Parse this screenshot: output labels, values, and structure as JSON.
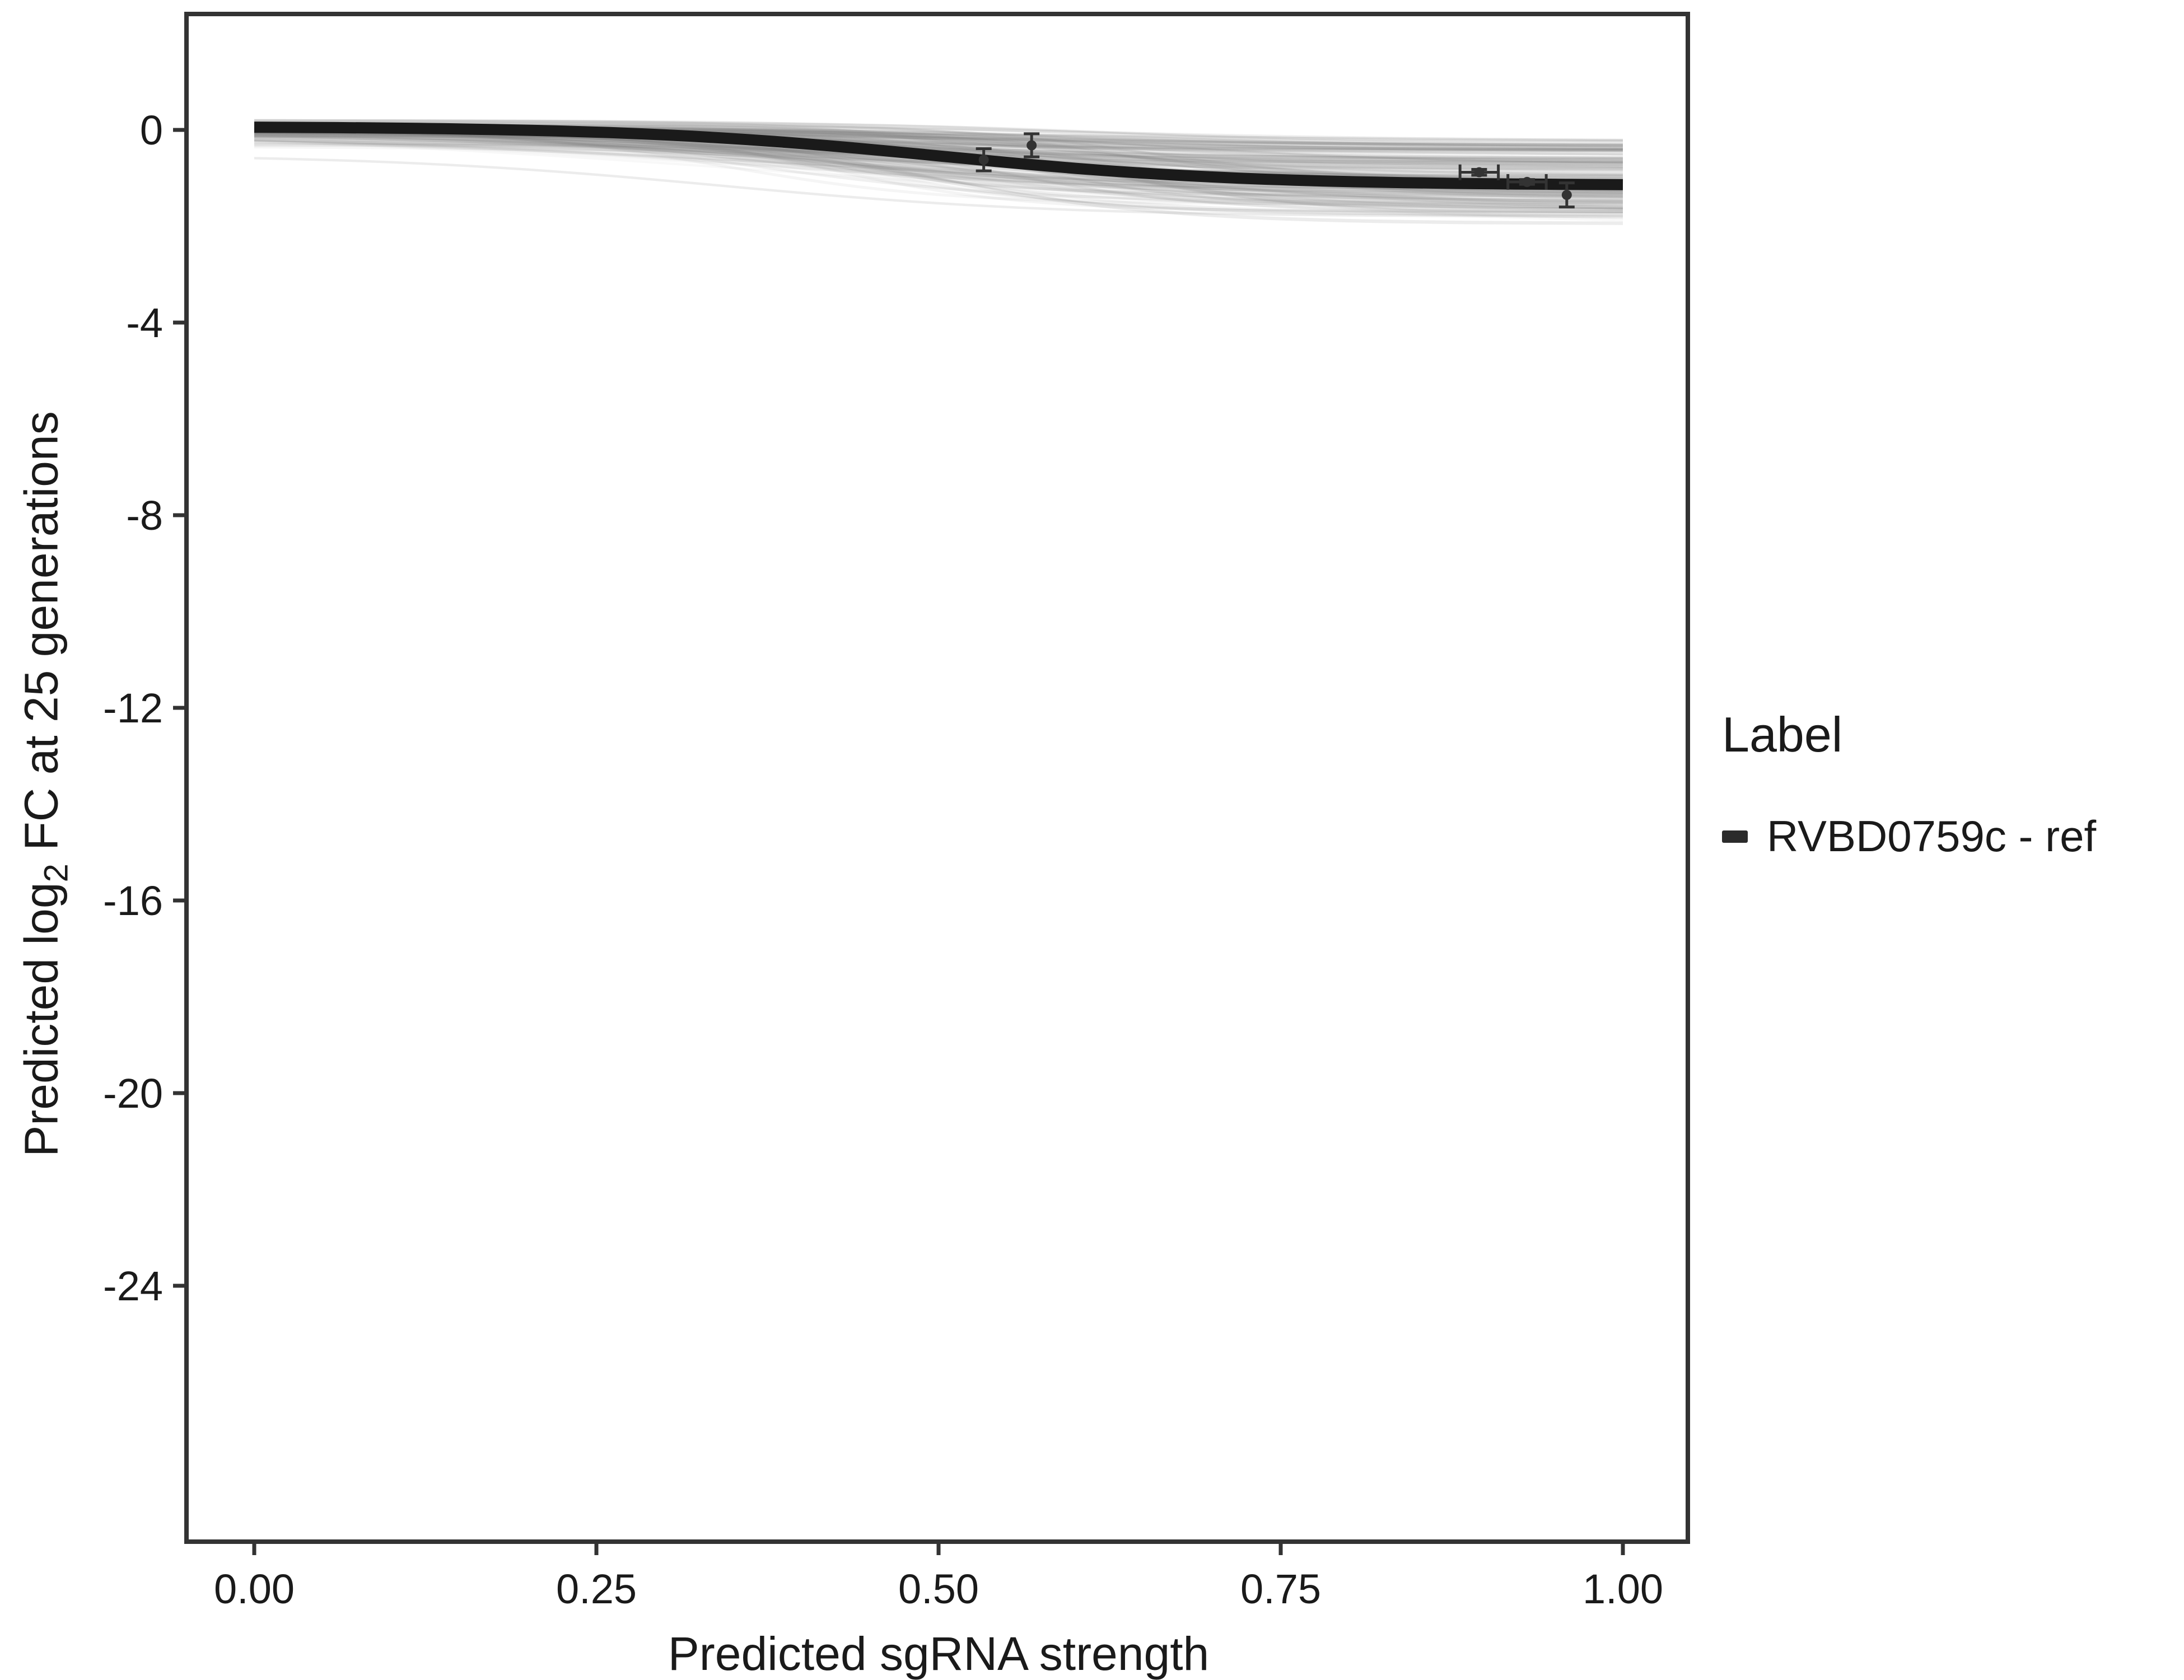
{
  "chart_data": {
    "type": "line",
    "title": "",
    "xlabel": "Predicted sgRNA strength",
    "ylabel": "Predicted log2 FC at 25 generations",
    "ylabel_parts": {
      "pre": "Predicted log",
      "sub": "2",
      "post": " FC at 25 generations"
    },
    "x_domain": [
      0,
      1
    ],
    "y_domain_top": 0,
    "y_domain_bottom": -24,
    "x_ticks": {
      "values": [
        0,
        0.25,
        0.5,
        0.75,
        1
      ],
      "labels": [
        "0.00",
        "0.25",
        "0.50",
        "0.75",
        "1.00"
      ]
    },
    "y_ticks": {
      "values": [
        0,
        -4,
        -8,
        -12,
        -16,
        -20,
        -24
      ],
      "labels": [
        "0",
        "-4",
        "-8",
        "-12",
        "-16",
        "-20",
        "-24"
      ]
    },
    "grid": "off",
    "legend_position": "right",
    "fit_curve": {
      "name": "RVBD0759c - ref",
      "model": "sigmoid",
      "baseline": 0.07,
      "amplitude": 1.22,
      "midpoint": 0.5,
      "steepness": 9,
      "value_at_0": 0.05,
      "value_at_1": -1.14,
      "color": "#1a1a1a",
      "width": 20
    },
    "ensemble": {
      "description": "posterior sample curves forming gray uncertainty band",
      "count": 160,
      "seed": 42,
      "color": "#808080",
      "baseline_center": 0.04,
      "baseline_spread": 0.22,
      "amplitude_range": [
        0.25,
        1.9
      ],
      "midpoint_range": [
        0.34,
        0.66
      ],
      "steepness_range": [
        4,
        14
      ],
      "opacity_range": [
        0.05,
        0.17
      ],
      "width_range": [
        3,
        7
      ]
    },
    "points": [
      {
        "x": 0.533,
        "y": -0.62,
        "yerr": 0.23,
        "xerr": 0
      },
      {
        "x": 0.568,
        "y": -0.32,
        "yerr": 0.24,
        "xerr": 0
      },
      {
        "x": 0.895,
        "y": -0.88,
        "yerr": 0.06,
        "xerr": 0.014
      },
      {
        "x": 0.93,
        "y": -1.08,
        "yerr": 0.05,
        "xerr": 0.014
      },
      {
        "x": 0.959,
        "y": -1.35,
        "yerr": 0.25,
        "xerr": 0
      }
    ],
    "point_style": {
      "color": "#333333",
      "radius": 9,
      "errorbar_width": 5,
      "cap_halfwidth": 14
    },
    "axis_style": {
      "border_color": "#333333",
      "border_width": 8,
      "tick_color": "#333333",
      "tick_width": 7,
      "tick_length": 24,
      "tick_label_color": "#1a1a1a",
      "tick_label_size": 74
    },
    "legend": {
      "title": "Label",
      "items": [
        {
          "label": "RVBD0759c - ref",
          "swatch_color": "#2b2b2b"
        }
      ]
    }
  }
}
